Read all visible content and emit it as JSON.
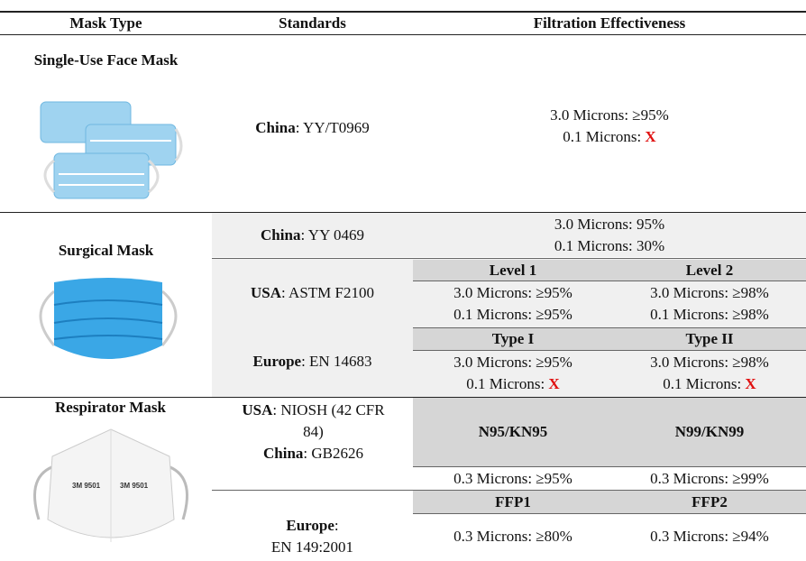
{
  "header": {
    "mask_type": "Mask Type",
    "standards": "Standards",
    "filtration": "Filtration Effectiveness"
  },
  "rows": [
    {
      "mask": "Single-Use Face Mask",
      "standards": [
        {
          "region": "China",
          "code": ": YY/T0969",
          "filtration": {
            "lines": [
              {
                "text": "3.0 Microns: ≥95%"
              },
              {
                "text": "0.1 Microns:",
                "mark": "X"
              }
            ]
          }
        }
      ]
    },
    {
      "mask": "Surgical Mask",
      "standards": [
        {
          "region": "China",
          "code": ": YY 0469",
          "filtration": {
            "lines": [
              {
                "text": "3.0 Microns: 95%"
              },
              {
                "text": "0.1 Microns: 30%"
              }
            ]
          }
        },
        {
          "region": "USA",
          "code": ": ASTM F2100",
          "filtration": {
            "columns": [
              {
                "heading": "Level 1",
                "lines": [
                  {
                    "text": "3.0 Microns: ≥95%"
                  },
                  {
                    "text": "0.1 Microns: ≥95%"
                  }
                ]
              },
              {
                "heading": "Level 2",
                "lines": [
                  {
                    "text": "3.0 Microns: ≥98%"
                  },
                  {
                    "text": "0.1 Microns: ≥98%"
                  }
                ]
              }
            ]
          }
        },
        {
          "region": "Europe",
          "code": ": EN 14683",
          "filtration": {
            "columns": [
              {
                "heading": "Type I",
                "lines": [
                  {
                    "text": "3.0 Microns: ≥95%"
                  },
                  {
                    "text": "0.1 Microns:",
                    "mark": "X"
                  }
                ]
              },
              {
                "heading": "Type II",
                "lines": [
                  {
                    "text": "3.0 Microns: ≥98%"
                  },
                  {
                    "text": "0.1 Microns:",
                    "mark": "X"
                  }
                ]
              }
            ]
          }
        }
      ]
    },
    {
      "mask": "Respirator Mask",
      "standards": [
        {
          "region": "USA",
          "code": ": NIOSH (42 CFR 84)",
          "region2": "China",
          "code2": ": GB2626",
          "filtration": {
            "columns": [
              {
                "heading": "N95/KN95",
                "lines": [
                  {
                    "text": "0.3 Microns: ≥95%"
                  }
                ]
              },
              {
                "heading": "N99/KN99",
                "lines": [
                  {
                    "text": "0.3 Microns: ≥99%"
                  }
                ]
              }
            ]
          }
        },
        {
          "region": "Europe",
          "code": ":",
          "code_line2": "EN 149:2001",
          "filtration": {
            "columns": [
              {
                "heading": "FFP1",
                "lines": [
                  {
                    "text": "0.3 Microns: ≥80%"
                  }
                ]
              },
              {
                "heading": "FFP2",
                "lines": [
                  {
                    "text": "0.3 Microns: ≥94%"
                  }
                ]
              }
            ]
          }
        }
      ]
    }
  ]
}
